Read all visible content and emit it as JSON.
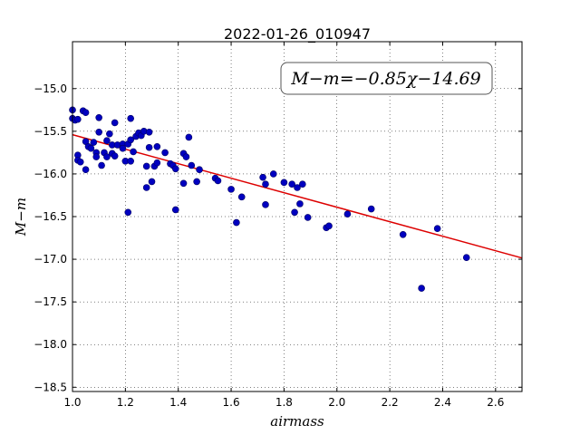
{
  "chart_data": {
    "type": "scatter",
    "title": "2022-01-26_010947",
    "xlabel": "airmass",
    "ylabel": "M−m",
    "xlim": [
      1.0,
      2.7
    ],
    "ylim": [
      -18.55,
      -14.45
    ],
    "xticks": [
      "1.0",
      "1.2",
      "1.4",
      "1.6",
      "1.8",
      "2.0",
      "2.2",
      "2.4",
      "2.6"
    ],
    "yticks": [
      "−15.0",
      "−15.5",
      "−16.0",
      "−16.5",
      "−17.0",
      "−17.5",
      "−18.0",
      "−18.5"
    ],
    "grid": true,
    "annotation": "M−m=−0.85χ−14.69",
    "fit": {
      "slope": -0.85,
      "intercept": -14.69,
      "color": "#dd0000"
    },
    "point_color": "#0000c0",
    "points": [
      [
        1.0,
        -15.25
      ],
      [
        1.0,
        -15.35
      ],
      [
        1.01,
        -15.37
      ],
      [
        1.02,
        -15.36
      ],
      [
        1.02,
        -15.78
      ],
      [
        1.02,
        -15.84
      ],
      [
        1.03,
        -15.86
      ],
      [
        1.04,
        -15.26
      ],
      [
        1.05,
        -15.28
      ],
      [
        1.05,
        -15.62
      ],
      [
        1.05,
        -15.95
      ],
      [
        1.06,
        -15.68
      ],
      [
        1.07,
        -15.7
      ],
      [
        1.08,
        -15.63
      ],
      [
        1.09,
        -15.75
      ],
      [
        1.09,
        -15.8
      ],
      [
        1.1,
        -15.34
      ],
      [
        1.1,
        -15.51
      ],
      [
        1.11,
        -15.9
      ],
      [
        1.12,
        -15.75
      ],
      [
        1.13,
        -15.61
      ],
      [
        1.13,
        -15.8
      ],
      [
        1.14,
        -15.53
      ],
      [
        1.15,
        -15.76
      ],
      [
        1.15,
        -15.66
      ],
      [
        1.16,
        -15.79
      ],
      [
        1.16,
        -15.4
      ],
      [
        1.17,
        -15.66
      ],
      [
        1.19,
        -15.65
      ],
      [
        1.19,
        -15.7
      ],
      [
        1.2,
        -15.85
      ],
      [
        1.21,
        -15.65
      ],
      [
        1.21,
        -16.45
      ],
      [
        1.22,
        -15.35
      ],
      [
        1.22,
        -15.6
      ],
      [
        1.22,
        -15.85
      ],
      [
        1.23,
        -15.74
      ],
      [
        1.24,
        -15.56
      ],
      [
        1.25,
        -15.52
      ],
      [
        1.26,
        -15.55
      ],
      [
        1.27,
        -15.5
      ],
      [
        1.28,
        -16.16
      ],
      [
        1.28,
        -15.91
      ],
      [
        1.29,
        -15.69
      ],
      [
        1.29,
        -15.51
      ],
      [
        1.3,
        -16.09
      ],
      [
        1.31,
        -15.91
      ],
      [
        1.32,
        -15.87
      ],
      [
        1.32,
        -15.68
      ],
      [
        1.35,
        -15.75
      ],
      [
        1.37,
        -15.88
      ],
      [
        1.38,
        -15.9
      ],
      [
        1.39,
        -15.94
      ],
      [
        1.39,
        -16.42
      ],
      [
        1.42,
        -16.11
      ],
      [
        1.42,
        -15.76
      ],
      [
        1.43,
        -15.8
      ],
      [
        1.44,
        -15.57
      ],
      [
        1.45,
        -15.9
      ],
      [
        1.47,
        -16.09
      ],
      [
        1.48,
        -15.95
      ],
      [
        1.54,
        -16.05
      ],
      [
        1.55,
        -16.08
      ],
      [
        1.6,
        -16.18
      ],
      [
        1.62,
        -16.57
      ],
      [
        1.64,
        -16.27
      ],
      [
        1.72,
        -16.04
      ],
      [
        1.73,
        -16.12
      ],
      [
        1.73,
        -16.36
      ],
      [
        1.76,
        -16.0
      ],
      [
        1.8,
        -16.1
      ],
      [
        1.83,
        -16.12
      ],
      [
        1.84,
        -16.45
      ],
      [
        1.85,
        -16.16
      ],
      [
        1.86,
        -16.35
      ],
      [
        1.87,
        -16.12
      ],
      [
        1.89,
        -16.51
      ],
      [
        1.96,
        -16.63
      ],
      [
        1.97,
        -16.61
      ],
      [
        2.04,
        -16.47
      ],
      [
        2.13,
        -16.41
      ],
      [
        2.25,
        -16.71
      ],
      [
        2.32,
        -17.34
      ],
      [
        2.38,
        -16.64
      ],
      [
        2.49,
        -16.98
      ]
    ]
  }
}
